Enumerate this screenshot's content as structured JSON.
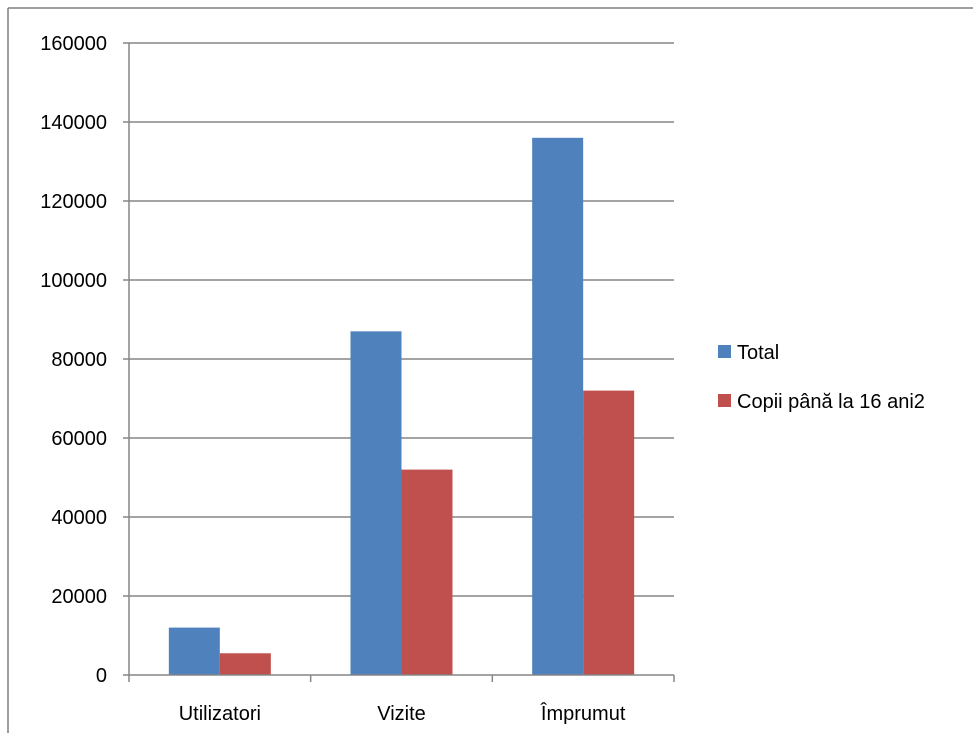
{
  "chart_data": {
    "type": "bar",
    "categories": [
      "Utilizatori",
      "Vizite",
      "Împrumut"
    ],
    "series": [
      {
        "name": "Total",
        "values": [
          12000,
          87000,
          136000
        ],
        "color": "#4F81BD"
      },
      {
        "name": "Copii până la 16 ani2",
        "values": [
          5500,
          52000,
          72000
        ],
        "color": "#C0504D"
      }
    ],
    "y_ticks": [
      "0",
      "20000",
      "40000",
      "60000",
      "80000",
      "100000",
      "120000",
      "140000",
      "160000"
    ],
    "ylim": [
      0,
      160000
    ],
    "grid": true,
    "legend_position": "right",
    "gridline_color": "#868686"
  }
}
